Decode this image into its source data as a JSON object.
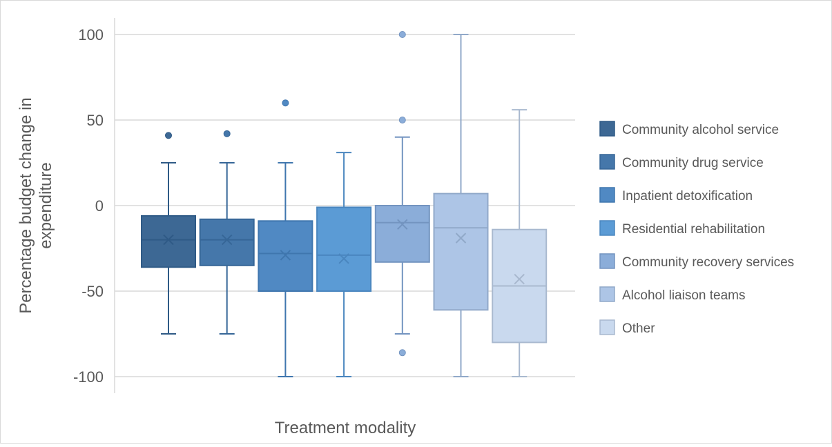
{
  "chart_data": {
    "type": "box",
    "title": "",
    "xlabel": "Treatment modality",
    "ylabel": "Percentage budget change in expenditure",
    "ylim": [
      -100,
      100
    ],
    "yticks": [
      100,
      50,
      0,
      -50,
      -100
    ],
    "ytick_labels": [
      "100",
      "50",
      "0",
      "-50",
      "-100"
    ],
    "grid": true,
    "legend_position": "right",
    "series": [
      {
        "name": "Community alcohol service",
        "color": "#3d6894",
        "stroke": "#2f5a86",
        "min": -75,
        "q1": -36,
        "median": -20,
        "q3": -6,
        "max": 25,
        "mean": -20,
        "outliers": [
          41
        ]
      },
      {
        "name": "Community drug service",
        "color": "#4577aa",
        "stroke": "#366697",
        "min": -75,
        "q1": -35,
        "median": -20,
        "q3": -8,
        "max": 25,
        "mean": -20,
        "outliers": [
          42
        ]
      },
      {
        "name": "Inpatient detoxification",
        "color": "#5089c3",
        "stroke": "#3f76ae",
        "min": -100,
        "q1": -50,
        "median": -28,
        "q3": -9,
        "max": 25,
        "mean": -29,
        "outliers": [
          60
        ]
      },
      {
        "name": "Residential rehabilitation",
        "color": "#5b9bd5",
        "stroke": "#4a86bf",
        "min": -100,
        "q1": -50,
        "median": -29,
        "q3": -1,
        "max": 31,
        "mean": -31,
        "outliers": []
      },
      {
        "name": "Community recovery services",
        "color": "#8badd9",
        "stroke": "#7394c0",
        "min": -75,
        "q1": -33,
        "median": -10,
        "q3": 0,
        "max": 40,
        "mean": -11,
        "outliers": [
          100,
          50,
          -86
        ]
      },
      {
        "name": "Alcohol liaison teams",
        "color": "#adc5e6",
        "stroke": "#91a9c9",
        "min": -100,
        "q1": -61,
        "median": -13,
        "q3": 7,
        "max": 100,
        "mean": -19,
        "outliers": []
      },
      {
        "name": "Other",
        "color": "#c9d9ee",
        "stroke": "#a9b9cf",
        "min": -100,
        "q1": -80,
        "median": -47,
        "q3": -14,
        "max": 56,
        "mean": -43,
        "outliers": []
      }
    ]
  }
}
